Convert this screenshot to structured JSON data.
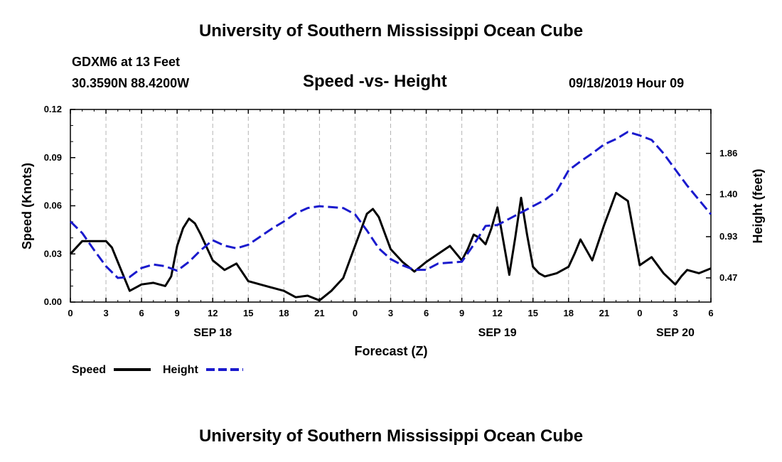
{
  "header": {
    "title_top": "University of Southern Mississippi Ocean Cube",
    "title_bottom": "University of Southern Mississippi Ocean Cube",
    "station": "GDXM6 at 13 Feet",
    "coords": "30.3590N 88.4200W",
    "plot_title": "Speed -vs- Height",
    "datetime": "09/18/2019 Hour 09"
  },
  "colors": {
    "speed": "#000000",
    "height": "#1a1acd",
    "grid": "#b4b4b4",
    "axis": "#000000"
  },
  "chart_data": {
    "type": "line",
    "title": "Speed -vs- Height",
    "xlabel": "Forecast (Z)",
    "ylabel": "Speed (Knots)",
    "y2label": "Height (feet)",
    "xlim": [
      0,
      54
    ],
    "ylim": [
      0,
      0.12
    ],
    "y2lim": [
      0.2,
      2.35
    ],
    "x_ticks": [
      0,
      3,
      6,
      9,
      12,
      15,
      18,
      21,
      24,
      27,
      30,
      33,
      36,
      39,
      42,
      45,
      48,
      51,
      54
    ],
    "x_tick_labels": [
      "0",
      "3",
      "6",
      "9",
      "12",
      "15",
      "18",
      "21",
      "0",
      "3",
      "6",
      "9",
      "12",
      "15",
      "18",
      "21",
      "0",
      "3",
      "6"
    ],
    "y_ticks": [
      0.0,
      0.03,
      0.06,
      0.09,
      0.12
    ],
    "y_tick_labels": [
      "0.00",
      "0.03",
      "0.06",
      "0.09",
      "0.12"
    ],
    "y2_ticks": [
      0.47,
      0.93,
      1.4,
      1.86
    ],
    "y2_tick_labels": [
      "0.47",
      "0.93",
      "1.40",
      "1.86"
    ],
    "date_labels": [
      {
        "x": 12,
        "label": "SEP 18"
      },
      {
        "x": 36,
        "label": "SEP 19"
      },
      {
        "x": 51,
        "label": "SEP 20"
      }
    ],
    "legend": [
      {
        "name": "Speed",
        "style": "solid"
      },
      {
        "name": "Height",
        "style": "dashed"
      }
    ],
    "series": [
      {
        "name": "Speed",
        "axis": "left",
        "x": [
          0,
          1,
          2,
          3,
          3.5,
          4,
          5,
          5.5,
          6,
          7,
          8,
          8.5,
          9,
          9.5,
          10,
          10.5,
          11,
          12,
          13,
          14,
          15,
          16,
          17,
          18,
          19,
          20,
          21,
          22,
          23,
          24,
          25,
          25.5,
          26,
          27,
          28,
          29,
          30,
          31,
          32,
          33,
          33.5,
          34,
          34.5,
          35,
          35.5,
          36,
          37,
          37.5,
          38,
          38.5,
          39,
          39.5,
          40,
          41,
          42,
          42.5,
          43,
          44,
          45,
          45.5,
          46,
          47,
          48,
          49,
          50,
          51,
          51.5,
          52,
          53,
          54
        ],
        "values": [
          0.03,
          0.038,
          0.038,
          0.038,
          0.034,
          0.025,
          0.007,
          0.009,
          0.011,
          0.012,
          0.01,
          0.016,
          0.035,
          0.046,
          0.052,
          0.049,
          0.042,
          0.026,
          0.02,
          0.024,
          0.013,
          0.011,
          0.009,
          0.007,
          0.003,
          0.004,
          0.001,
          0.007,
          0.015,
          0.035,
          0.055,
          0.058,
          0.053,
          0.033,
          0.025,
          0.019,
          0.025,
          0.03,
          0.035,
          0.026,
          0.033,
          0.042,
          0.04,
          0.036,
          0.046,
          0.059,
          0.017,
          0.04,
          0.065,
          0.042,
          0.022,
          0.018,
          0.016,
          0.018,
          0.022,
          0.03,
          0.039,
          0.026,
          0.048,
          0.058,
          0.068,
          0.063,
          0.023,
          0.028,
          0.018,
          0.011,
          0.016,
          0.02,
          0.018,
          0.021
        ]
      },
      {
        "name": "Height",
        "axis": "right",
        "x": [
          0,
          1,
          2,
          3,
          4,
          5,
          6,
          7,
          8,
          9,
          10,
          11,
          12,
          13,
          14,
          15,
          16,
          17,
          18,
          19,
          20,
          21,
          22,
          23,
          24,
          25,
          26,
          27,
          28,
          29,
          30,
          31,
          32,
          33,
          34,
          35,
          36,
          37,
          38,
          39,
          40,
          41,
          42,
          43,
          44,
          45,
          46,
          47,
          48,
          49,
          50,
          51,
          52,
          53,
          54
        ],
        "values": [
          1.1,
          0.97,
          0.78,
          0.6,
          0.47,
          0.48,
          0.58,
          0.62,
          0.6,
          0.55,
          0.65,
          0.78,
          0.89,
          0.83,
          0.8,
          0.84,
          0.93,
          1.02,
          1.1,
          1.19,
          1.25,
          1.27,
          1.26,
          1.25,
          1.18,
          1.0,
          0.8,
          0.68,
          0.61,
          0.56,
          0.56,
          0.63,
          0.64,
          0.65,
          0.84,
          1.05,
          1.06,
          1.13,
          1.2,
          1.27,
          1.34,
          1.44,
          1.67,
          1.77,
          1.86,
          1.96,
          2.02,
          2.1,
          2.06,
          2.01,
          1.86,
          1.68,
          1.5,
          1.34,
          1.18
        ]
      }
    ]
  }
}
